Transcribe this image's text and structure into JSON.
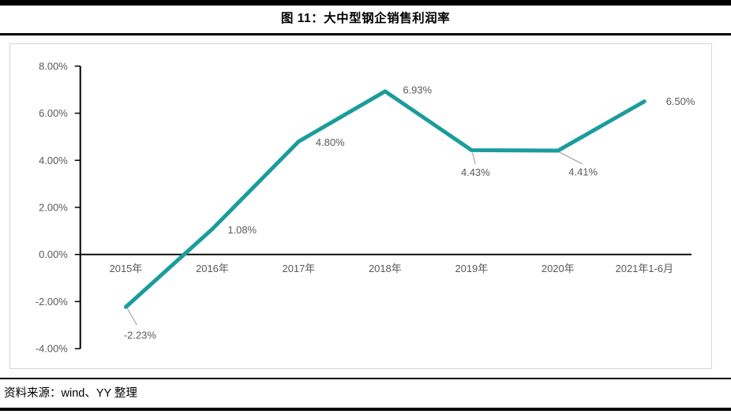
{
  "page": {
    "title": "图 11：大中型钢企销售利润率",
    "source": "资料来源：wind、YY 整理"
  },
  "colors": {
    "line": "#1b9c9c",
    "axis": "#000000",
    "tick_label": "#595959",
    "data_label": "#595959",
    "leader": "#a6a6a6",
    "chart_border": "#d4d4d4"
  },
  "chart_data": {
    "type": "line",
    "title": "图 11：大中型钢企销售利润率",
    "categories": [
      "2015年",
      "2016年",
      "2017年",
      "2018年",
      "2019年",
      "2020年",
      "2021年1-6月"
    ],
    "values": [
      -2.23,
      1.08,
      4.8,
      6.93,
      4.43,
      4.41,
      6.5
    ],
    "data_labels": [
      "-2.23%",
      "1.08%",
      "4.80%",
      "6.93%",
      "4.43%",
      "4.41%",
      "6.50%"
    ],
    "y_ticks": [
      "8.00%",
      "6.00%",
      "4.00%",
      "2.00%",
      "0.00%",
      "-2.00%",
      "-4.00%"
    ],
    "y_tick_values": [
      8,
      6,
      4,
      2,
      0,
      -2,
      -4
    ],
    "ylim": [
      -4,
      8
    ],
    "xlabel": "",
    "ylabel": "",
    "grid": false,
    "legend_position": "none",
    "unit": "percent"
  }
}
